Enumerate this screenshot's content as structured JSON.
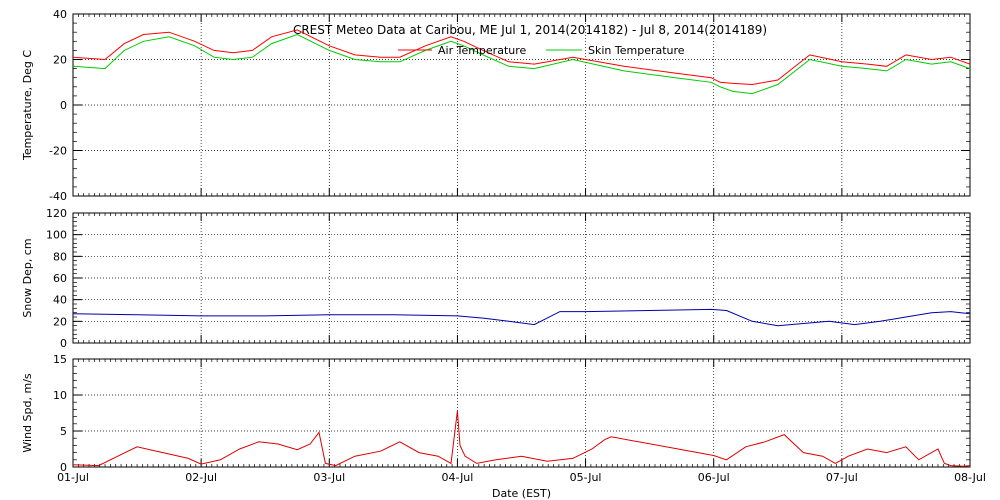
{
  "chart_data": [
    {
      "type": "line",
      "title": "CREST Meteo Data at Caribou, ME   Jul  1, 2014(2014182) - Jul  8, 2014(2014189)",
      "ylabel": "Temperature, Deg C",
      "ylim": [
        -40,
        40
      ],
      "yticks": [
        -40,
        -20,
        0,
        20,
        40
      ],
      "x_range_days": [
        0,
        7
      ],
      "grid": true,
      "legend_position": "top-center",
      "series": [
        {
          "name": "Air Temperature",
          "color": "#ff0000",
          "x": [
            0,
            0.25,
            0.4,
            0.55,
            0.75,
            0.95,
            1.1,
            1.25,
            1.4,
            1.55,
            1.75,
            2.0,
            2.2,
            2.4,
            2.55,
            2.75,
            2.95,
            3.05,
            3.2,
            3.4,
            3.6,
            3.9,
            4.3,
            4.7,
            4.98,
            5.05,
            5.15,
            5.3,
            5.5,
            5.75,
            6.0,
            6.2,
            6.35,
            6.5,
            6.7,
            6.85,
            7.0
          ],
          "y": [
            21,
            20,
            27,
            31,
            32,
            28,
            24,
            23,
            24,
            30,
            33,
            26,
            22,
            21,
            21,
            26,
            30,
            28,
            24,
            19,
            18,
            21,
            17,
            14,
            12,
            10,
            9.5,
            9,
            11,
            22,
            19,
            18,
            17,
            22,
            20,
            21,
            18
          ]
        },
        {
          "name": "Skin Temperature",
          "color": "#00cc00",
          "x": [
            0,
            0.25,
            0.4,
            0.55,
            0.75,
            0.95,
            1.1,
            1.25,
            1.4,
            1.55,
            1.75,
            2.0,
            2.2,
            2.4,
            2.55,
            2.75,
            2.95,
            3.05,
            3.2,
            3.4,
            3.6,
            3.9,
            4.3,
            4.7,
            4.98,
            5.05,
            5.15,
            5.3,
            5.5,
            5.75,
            6.0,
            6.2,
            6.35,
            6.5,
            6.7,
            6.85,
            7.0
          ],
          "y": [
            17,
            16,
            24,
            28,
            30,
            26,
            21,
            20,
            21,
            27,
            31,
            24,
            20,
            19,
            19,
            24,
            28,
            26,
            22,
            17,
            16,
            20,
            15,
            12,
            10,
            8,
            6,
            5,
            9,
            20,
            17,
            16,
            15,
            20,
            18,
            19,
            16
          ]
        }
      ]
    },
    {
      "type": "line",
      "title": "",
      "ylabel": "Snow Dep, cm",
      "ylim": [
        0,
        120
      ],
      "yticks": [
        0,
        20,
        40,
        60,
        80,
        100,
        120
      ],
      "x_range_days": [
        0,
        7
      ],
      "grid": true,
      "series": [
        {
          "color": "#0000aa",
          "x": [
            0,
            0.5,
            1.0,
            1.5,
            2.0,
            2.5,
            3.0,
            3.2,
            3.4,
            3.6,
            3.8,
            4.0,
            4.5,
            4.98,
            5.1,
            5.3,
            5.5,
            5.7,
            5.9,
            6.1,
            6.3,
            6.5,
            6.7,
            6.85,
            7.0
          ],
          "y": [
            27,
            26,
            25,
            25,
            26,
            26,
            25,
            23,
            20,
            17,
            29,
            29,
            30,
            31,
            30,
            20,
            16,
            18,
            20,
            17,
            20,
            24,
            28,
            29,
            27
          ]
        }
      ]
    },
    {
      "type": "line",
      "title": "",
      "ylabel": "Wind Spd, m/s",
      "xlabel": "Date (EST)",
      "ylim": [
        0,
        15
      ],
      "yticks": [
        0,
        5,
        10,
        15
      ],
      "x_range_days": [
        0,
        7
      ],
      "xtick_labels": [
        "01-Jul",
        "02-Jul",
        "03-Jul",
        "04-Jul",
        "05-Jul",
        "06-Jul",
        "07-Jul",
        "08-Jul"
      ],
      "grid": true,
      "series": [
        {
          "color": "#dd0000",
          "x": [
            0,
            0.2,
            0.35,
            0.5,
            0.6,
            0.75,
            0.9,
            1.0,
            1.15,
            1.3,
            1.45,
            1.6,
            1.75,
            1.85,
            1.92,
            1.97,
            2.05,
            2.2,
            2.4,
            2.55,
            2.7,
            2.85,
            2.95,
            3.0,
            3.02,
            3.06,
            3.15,
            3.3,
            3.5,
            3.7,
            3.9,
            4.05,
            4.15,
            4.2,
            5.0,
            5.1,
            5.25,
            5.4,
            5.55,
            5.7,
            5.85,
            5.95,
            6.05,
            6.2,
            6.35,
            6.5,
            6.6,
            6.75,
            6.8,
            6.85,
            6.95,
            7.0
          ],
          "y": [
            0.3,
            0.2,
            1.5,
            2.8,
            2.4,
            1.8,
            1.2,
            0.4,
            1.0,
            2.5,
            3.5,
            3.2,
            2.4,
            3.2,
            4.8,
            0.5,
            0.2,
            1.5,
            2.2,
            3.5,
            2.0,
            1.5,
            0.5,
            7.8,
            3.0,
            1.5,
            0.5,
            1.0,
            1.5,
            0.8,
            1.2,
            2.5,
            3.8,
            4.2,
            1.6,
            1.0,
            2.8,
            3.5,
            4.5,
            2.0,
            1.5,
            0.5,
            1.5,
            2.5,
            2.0,
            2.8,
            1.0,
            2.5,
            0.5,
            0.2,
            0.1,
            0.2
          ]
        }
      ]
    }
  ]
}
